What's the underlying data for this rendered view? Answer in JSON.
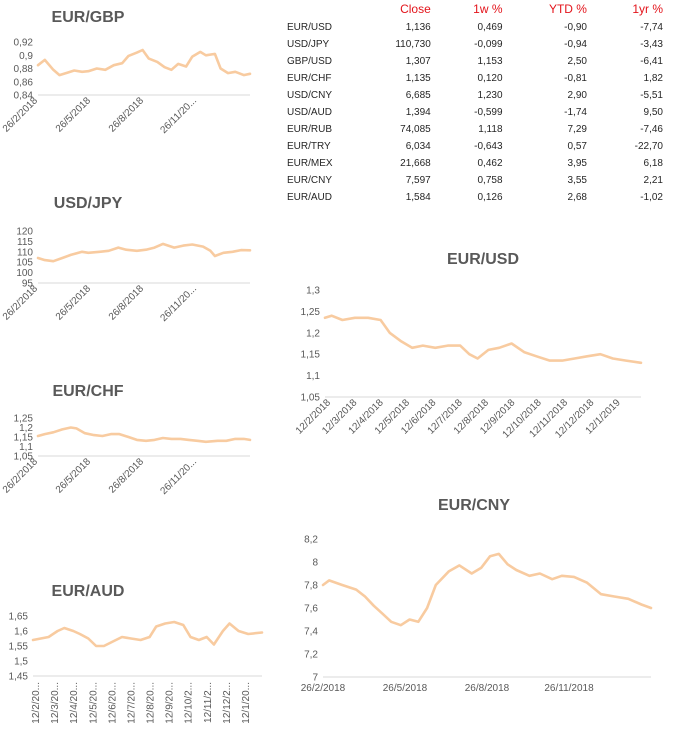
{
  "table": {
    "columns": [
      "",
      "Close",
      "1w %",
      "YTD %",
      "1yr %"
    ],
    "rows": [
      {
        "pair": "EUR/USD",
        "close": "1,136",
        "w1": "0,469",
        "ytd": "-0,90",
        "yr1": "-7,74"
      },
      {
        "pair": "USD/JPY",
        "close": "110,730",
        "w1": "-0,099",
        "ytd": "-0,94",
        "yr1": "-3,43"
      },
      {
        "pair": "GBP/USD",
        "close": "1,307",
        "w1": "1,153",
        "ytd": "2,50",
        "yr1": "-6,41"
      },
      {
        "pair": "EUR/CHF",
        "close": "1,135",
        "w1": "0,120",
        "ytd": "-0,81",
        "yr1": "1,82"
      },
      {
        "pair": "USD/CNY",
        "close": "6,685",
        "w1": "1,230",
        "ytd": "2,90",
        "yr1": "-5,51"
      },
      {
        "pair": "USD/AUD",
        "close": "1,394",
        "w1": "-0,599",
        "ytd": "-1,74",
        "yr1": "9,50"
      },
      {
        "pair": "EUR/RUB",
        "close": "74,085",
        "w1": "1,118",
        "ytd": "7,29",
        "yr1": "-7,46"
      },
      {
        "pair": "EUR/TRY",
        "close": "6,034",
        "w1": "-0,643",
        "ytd": "0,57",
        "yr1": "-22,70"
      },
      {
        "pair": "EUR/MEX",
        "close": "21,668",
        "w1": "0,462",
        "ytd": "3,95",
        "yr1": "6,18"
      },
      {
        "pair": "EUR/CNY",
        "close": "7,597",
        "w1": "0,758",
        "ytd": "3,55",
        "yr1": "2,21"
      },
      {
        "pair": "EUR/AUD",
        "close": "1,584",
        "w1": "0,126",
        "ytd": "2,68",
        "yr1": "-1,02"
      }
    ]
  },
  "colors": {
    "series": "#f8cba0",
    "header_red": "#e3141b",
    "axis": "#d9d9d9",
    "text": "#595959"
  },
  "chart_data": [
    {
      "id": "eurgbp",
      "type": "line",
      "title": "EUR/GBP",
      "ylim": [
        0.84,
        0.92
      ],
      "yticks": [
        "0,84",
        "0,86",
        "0,88",
        "0,9",
        "0,92"
      ],
      "xlim": [
        "2018-02-26",
        "2019-03-08"
      ],
      "xticks": [
        "26/2/2018",
        "26/5/2018",
        "26/8/2018",
        "26/11/20..."
      ],
      "series": [
        {
          "x": [
            "2018-02-26",
            "2018-03-10",
            "2018-03-25",
            "2018-04-05",
            "2018-04-20",
            "2018-05-01",
            "2018-05-15",
            "2018-05-26",
            "2018-06-10",
            "2018-06-25",
            "2018-07-10",
            "2018-07-25",
            "2018-08-05",
            "2018-08-20",
            "2018-08-30",
            "2018-09-10",
            "2018-09-25",
            "2018-10-08",
            "2018-10-20",
            "2018-11-01",
            "2018-11-15",
            "2018-11-26",
            "2018-12-10",
            "2018-12-20",
            "2019-01-05",
            "2019-01-15",
            "2019-01-28",
            "2019-02-10",
            "2019-02-25",
            "2019-03-08"
          ],
          "values": [
            0.885,
            0.893,
            0.878,
            0.87,
            0.874,
            0.877,
            0.875,
            0.876,
            0.88,
            0.878,
            0.885,
            0.888,
            0.899,
            0.904,
            0.908,
            0.895,
            0.89,
            0.882,
            0.878,
            0.887,
            0.883,
            0.898,
            0.905,
            0.9,
            0.902,
            0.88,
            0.873,
            0.875,
            0.87,
            0.872
          ]
        }
      ]
    },
    {
      "id": "usdjpy",
      "type": "line",
      "title": "USD/JPY",
      "ylim": [
        95,
        120
      ],
      "yticks": [
        "95",
        "100",
        "105",
        "110",
        "115",
        "120"
      ],
      "xlim": [
        "2018-02-26",
        "2019-03-08"
      ],
      "xticks": [
        "26/2/2018",
        "26/5/2018",
        "26/8/2018",
        "26/11/20..."
      ],
      "series": [
        {
          "x": [
            "2018-02-26",
            "2018-03-10",
            "2018-03-25",
            "2018-04-10",
            "2018-04-25",
            "2018-05-15",
            "2018-05-26",
            "2018-06-15",
            "2018-07-01",
            "2018-07-18",
            "2018-08-01",
            "2018-08-20",
            "2018-09-05",
            "2018-09-20",
            "2018-10-05",
            "2018-10-25",
            "2018-11-10",
            "2018-11-26",
            "2018-12-15",
            "2018-12-28",
            "2019-01-05",
            "2019-01-20",
            "2019-02-05",
            "2019-02-20",
            "2019-03-08"
          ],
          "values": [
            107,
            106,
            105.5,
            107,
            108.5,
            110,
            109.5,
            110,
            110.5,
            112,
            111,
            110.5,
            111,
            112,
            113.8,
            112,
            113,
            113.5,
            112.5,
            110.5,
            108,
            109.5,
            110,
            110.8,
            110.7
          ]
        }
      ]
    },
    {
      "id": "eurchf",
      "type": "line",
      "title": "EUR/CHF",
      "ylim": [
        1.05,
        1.25
      ],
      "yticks": [
        "1,05",
        "1,1",
        "1,15",
        "1,2",
        "1,25"
      ],
      "xlim": [
        "2018-02-26",
        "2019-03-08"
      ],
      "xticks": [
        "26/2/2018",
        "26/5/2018",
        "26/8/2018",
        "26/11/20..."
      ],
      "series": [
        {
          "x": [
            "2018-02-26",
            "2018-03-10",
            "2018-03-25",
            "2018-04-10",
            "2018-04-25",
            "2018-05-05",
            "2018-05-20",
            "2018-06-05",
            "2018-06-20",
            "2018-07-05",
            "2018-07-20",
            "2018-08-05",
            "2018-08-20",
            "2018-09-05",
            "2018-09-20",
            "2018-10-05",
            "2018-10-20",
            "2018-11-05",
            "2018-11-20",
            "2018-12-05",
            "2018-12-20",
            "2019-01-10",
            "2019-01-25",
            "2019-02-10",
            "2019-02-25",
            "2019-03-08"
          ],
          "values": [
            1.155,
            1.165,
            1.175,
            1.19,
            1.2,
            1.195,
            1.17,
            1.16,
            1.155,
            1.165,
            1.165,
            1.15,
            1.135,
            1.13,
            1.135,
            1.145,
            1.14,
            1.14,
            1.135,
            1.13,
            1.125,
            1.13,
            1.13,
            1.14,
            1.14,
            1.135
          ]
        }
      ]
    },
    {
      "id": "euraud",
      "type": "line",
      "title": "EUR/AUD",
      "ylim": [
        1.45,
        1.65
      ],
      "yticks": [
        "1,45",
        "1,5",
        "1,55",
        "1,6",
        "1,65"
      ],
      "xlim": [
        "2018-02-12",
        "2019-02-28"
      ],
      "xticks": [
        "12/2/20...",
        "12/3/20...",
        "12/4/20...",
        "12/5/20...",
        "12/6/20...",
        "12/7/20...",
        "12/8/20...",
        "12/9/20...",
        "12/10/2...",
        "12/11/2...",
        "12/12/2...",
        "12/1/20..."
      ],
      "series": [
        {
          "x": [
            "2018-02-12",
            "2018-02-25",
            "2018-03-10",
            "2018-03-25",
            "2018-04-05",
            "2018-04-20",
            "2018-05-01",
            "2018-05-15",
            "2018-05-28",
            "2018-06-10",
            "2018-06-25",
            "2018-07-10",
            "2018-07-25",
            "2018-08-10",
            "2018-08-25",
            "2018-09-05",
            "2018-09-20",
            "2018-10-05",
            "2018-10-20",
            "2018-11-01",
            "2018-11-15",
            "2018-11-28",
            "2018-12-10",
            "2018-12-25",
            "2019-01-05",
            "2019-01-20",
            "2019-02-05",
            "2019-02-28"
          ],
          "values": [
            1.57,
            1.575,
            1.58,
            1.6,
            1.61,
            1.6,
            1.59,
            1.575,
            1.55,
            1.55,
            1.565,
            1.58,
            1.575,
            1.57,
            1.58,
            1.615,
            1.625,
            1.63,
            1.62,
            1.58,
            1.57,
            1.58,
            1.555,
            1.6,
            1.625,
            1.6,
            1.59,
            1.595
          ]
        }
      ]
    },
    {
      "id": "eurusd",
      "type": "line",
      "title": "EUR/USD",
      "ylim": [
        1.05,
        1.3
      ],
      "yticks": [
        "1,05",
        "1,1",
        "1,15",
        "1,2",
        "1,25",
        "1,3"
      ],
      "xlim": [
        "2018-02-12",
        "2019-02-28"
      ],
      "xticks": [
        "12/2/2018",
        "12/3/2018",
        "12/4/2018",
        "12/5/2018",
        "12/6/2018",
        "12/7/2018",
        "12/8/2018",
        "12/9/2018",
        "12/10/2018",
        "12/11/2018",
        "12/12/2018",
        "12/1/2019"
      ],
      "series": [
        {
          "x": [
            "2018-02-12",
            "2018-02-20",
            "2018-03-05",
            "2018-03-20",
            "2018-04-05",
            "2018-04-20",
            "2018-05-01",
            "2018-05-15",
            "2018-05-28",
            "2018-06-10",
            "2018-06-25",
            "2018-07-10",
            "2018-07-25",
            "2018-08-05",
            "2018-08-15",
            "2018-08-28",
            "2018-09-10",
            "2018-09-25",
            "2018-10-10",
            "2018-10-25",
            "2018-11-10",
            "2018-11-25",
            "2018-12-10",
            "2018-12-25",
            "2019-01-10",
            "2019-01-25",
            "2019-02-10",
            "2019-02-28"
          ],
          "values": [
            1.235,
            1.24,
            1.23,
            1.235,
            1.235,
            1.23,
            1.2,
            1.18,
            1.165,
            1.17,
            1.165,
            1.17,
            1.17,
            1.15,
            1.14,
            1.16,
            1.165,
            1.175,
            1.155,
            1.145,
            1.135,
            1.135,
            1.14,
            1.145,
            1.15,
            1.14,
            1.135,
            1.13
          ]
        }
      ]
    },
    {
      "id": "eurcny",
      "type": "line",
      "title": "EUR/CNY",
      "ylim": [
        7,
        8.2
      ],
      "yticks": [
        "7",
        "7,2",
        "7,4",
        "7,6",
        "7,8",
        "8",
        "8,2"
      ],
      "xlim": [
        "2018-02-26",
        "2019-03-08"
      ],
      "xticks": [
        "26/2/2018",
        "26/5/2018",
        "26/8/2018",
        "26/11/2018"
      ],
      "series": [
        {
          "x": [
            "2018-02-26",
            "2018-03-05",
            "2018-03-20",
            "2018-04-05",
            "2018-04-15",
            "2018-04-25",
            "2018-05-05",
            "2018-05-15",
            "2018-05-26",
            "2018-06-05",
            "2018-06-15",
            "2018-06-25",
            "2018-07-05",
            "2018-07-20",
            "2018-08-01",
            "2018-08-15",
            "2018-08-26",
            "2018-09-05",
            "2018-09-15",
            "2018-09-25",
            "2018-10-05",
            "2018-10-20",
            "2018-11-01",
            "2018-11-15",
            "2018-11-26",
            "2018-12-10",
            "2018-12-25",
            "2019-01-10",
            "2019-01-25",
            "2019-02-10",
            "2019-02-25",
            "2019-03-08"
          ],
          "values": [
            7.8,
            7.84,
            7.8,
            7.76,
            7.7,
            7.62,
            7.55,
            7.48,
            7.45,
            7.5,
            7.48,
            7.6,
            7.8,
            7.92,
            7.97,
            7.9,
            7.95,
            8.05,
            8.07,
            7.98,
            7.93,
            7.88,
            7.9,
            7.85,
            7.88,
            7.87,
            7.82,
            7.72,
            7.7,
            7.68,
            7.63,
            7.6
          ]
        }
      ]
    }
  ]
}
